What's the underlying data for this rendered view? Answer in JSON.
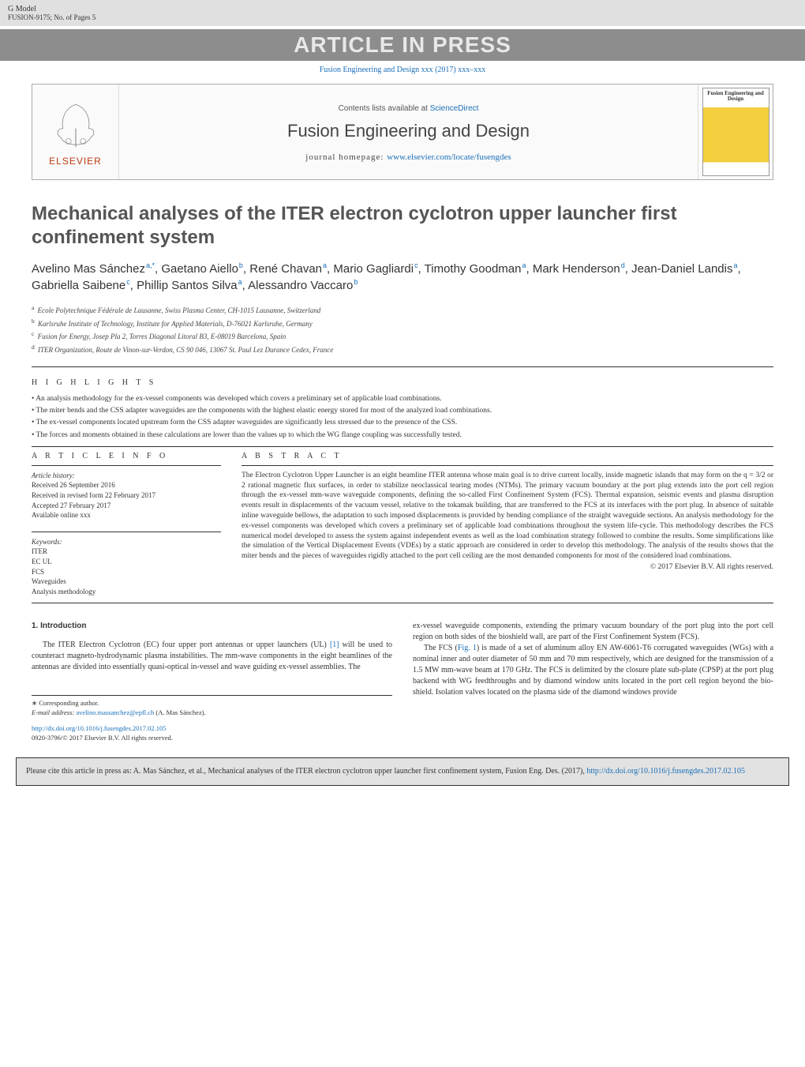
{
  "header": {
    "g_model": "G Model",
    "model_code": "FUSION-9175;   No. of Pages 5",
    "press_banner": "ARTICLE IN PRESS",
    "journal_ref": "Fusion Engineering and Design xxx (2017) xxx–xxx"
  },
  "journal_band": {
    "elsevier": "ELSEVIER",
    "contents_prefix": "Contents lists available at ",
    "contents_link": "ScienceDirect",
    "journal_name": "Fusion Engineering and Design",
    "homepage_prefix": "journal homepage: ",
    "homepage_url": "www.elsevier.com/locate/fusengdes",
    "cover_title": "Fusion Engineering and Design"
  },
  "title": "Mechanical analyses of the ITER electron cyclotron upper launcher first confinement system",
  "authors_line": "Avelino Mas Sánchez|a,*|, Gaetano Aiello|b|, René Chavan|a|, Mario Gagliardi|c|, Timothy Goodman|a|, Mark Henderson|d|, Jean-Daniel Landis|a|, Gabriella Saibene|c|, Phillip Santos Silva|a|, Alessandro Vaccaro|b|",
  "affiliations": [
    {
      "sup": "a",
      "text": "Ecole Polytechnique Fédérale de Lausanne, Swiss Plasma Center, CH-1015 Lausanne, Switzerland"
    },
    {
      "sup": "b",
      "text": "Karlsruhe Institute of Technology, Institute for Applied Materials, D-76021 Karlsruhe, Germany"
    },
    {
      "sup": "c",
      "text": "Fusion for Energy, Josep Pla 2, Torres Diagonal Litoral B3, E-08019 Barcelona, Spain"
    },
    {
      "sup": "d",
      "text": "ITER Organization, Route de Vinon-sur-Verdon, CS 90 046, 13067 St. Paul Lez Durance Cedex, France"
    }
  ],
  "highlights_label": "H I G H L I G H T S",
  "highlights": [
    "An analysis methodology for the ex-vessel components was developed which covers a preliminary set of applicable load combinations.",
    "The miter bends and the CSS adapter waveguides are the components with the highest elastic energy stored for most of the analyzed load combinations.",
    "The ex-vessel components located upstream form the CSS adapter waveguides are significantly less stressed due to the presence of the CSS.",
    "The forces and moments obtained in these calculations are lower than the values up to which the WG flange coupling was successfully tested."
  ],
  "article_info": {
    "label": "A R T I C L E   I N F O",
    "history_head": "Article history:",
    "history": [
      "Received 26 September 2016",
      "Received in revised form 22 February 2017",
      "Accepted 27 February 2017",
      "Available online xxx"
    ],
    "keywords_head": "Keywords:",
    "keywords": [
      "ITER",
      "EC UL",
      "FCS",
      "Waveguides",
      "Analysis methodology"
    ]
  },
  "abstract": {
    "label": "A B S T R A C T",
    "text": "The Electron Cyclotron Upper Launcher is an eight beamline ITER antenna whose main goal is to drive current locally, inside magnetic islands that may form on the q = 3/2 or 2 rational magnetic flux surfaces, in order to stabilize neoclassical tearing modes (NTMs). The primary vacuum boundary at the port plug extends into the port cell region through the ex-vessel mm-wave waveguide components, defining the so-called First Confinement System (FCS). Thermal expansion, seismic events and plasma disruption events result in displacements of the vacuum vessel, relative to the tokamak building, that are transferred to the FCS at its interfaces with the port plug. In absence of suitable inline waveguide bellows, the adaptation to such imposed displacements is provided by bending compliance of the straight waveguide sections. An analysis methodology for the ex-vessel components was developed which covers a preliminary set of applicable load combinations throughout the system life-cycle. This methodology describes the FCS numerical model developed to assess the system against independent events as well as the load combination strategy followed to combine the results. Some simplifications like the simulation of the Vertical Displacement Events (VDEs) by a static approach are considered in order to develop this methodology. The analysis of the results shows that the miter bends and the pieces of waveguides rigidly attached to the port cell ceiling are the most demanded components for most of the considered load combinations.",
    "copyright": "© 2017 Elsevier B.V. All rights reserved."
  },
  "body": {
    "intro_head": "1.  Introduction",
    "left_p1": "The ITER Electron Cyclotron (EC) four upper port antennas or upper launchers (UL) [1] will be used to counteract magneto-hydrodynamic plasma instabilities. The mm-wave components in the eight beamlines of the antennas are divided into essentially quasi-optical in-vessel and wave guiding ex-vessel assemblies. The",
    "right_p1": "ex-vessel waveguide components, extending the primary vacuum boundary of the port plug into the port cell region on both sides of the bioshield wall, are part of the First Confinement System (FCS).",
    "right_p2": "The FCS (Fig. 1) is made of a set of aluminum alloy EN AW-6061-T6 corrugated waveguides (WGs) with a nominal inner and outer diameter of 50 mm and 70 mm respectively, which are designed for the transmission of a 1.5 MW mm-wave beam at 170 GHz. The FCS is delimited by the closure plate sub-plate (CPSP) at the port plug backend with WG feedthroughs and by diamond window units located in the port cell region beyond the bio-shield. Isolation valves located on the plasma side of the diamond windows provide"
  },
  "footnote": {
    "corresponding": "∗ Corresponding author.",
    "email_label": "E-mail address: ",
    "email": "avelino.massanchez@epfl.ch",
    "email_attribution": " (A. Mas Sánchez)."
  },
  "doi": {
    "url": "http://dx.doi.org/10.1016/j.fusengdes.2017.02.105",
    "issn_line": "0920-3796/© 2017 Elsevier B.V. All rights reserved."
  },
  "cite_box": {
    "text_prefix": "Please cite this article in press as: A. Mas Sánchez, et al., Mechanical analyses of the ITER electron cyclotron upper launcher first confinement system, Fusion Eng. Des. (2017), ",
    "url": "http://dx.doi.org/10.1016/j.fusengdes.2017.02.105"
  }
}
